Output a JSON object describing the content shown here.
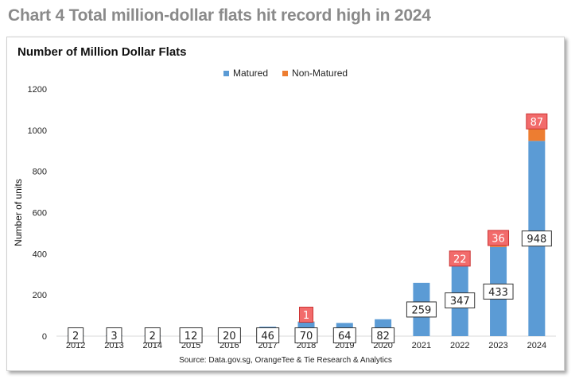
{
  "page_heading": "Chart 4 Total million-dollar flats hit record high in 2024",
  "source": "Source: Data.gov.sg, OrangeTee & Tie Research & Analytics",
  "colors": {
    "matured": "#5b9bd5",
    "non_matured": "#ed7d31",
    "non_matured_label_bg": "#f26b6b"
  },
  "chart_data": {
    "type": "bar",
    "stacked": true,
    "title": "Number of Million Dollar Flats",
    "xlabel": "",
    "ylabel": "Number of units",
    "ylim": [
      0,
      1200
    ],
    "yticks": [
      0,
      200,
      400,
      600,
      800,
      1000,
      1200
    ],
    "grid": false,
    "legend_position": "top-center",
    "categories": [
      "2012",
      "2013",
      "2014",
      "2015",
      "2016",
      "2017",
      "2018",
      "2019",
      "2020",
      "2021",
      "2022",
      "2023",
      "2024"
    ],
    "series": [
      {
        "name": "Matured",
        "values": [
          2,
          3,
          2,
          12,
          20,
          46,
          70,
          64,
          82,
          259,
          347,
          433,
          948
        ]
      },
      {
        "name": "Non-Matured",
        "values": [
          null,
          null,
          null,
          null,
          null,
          null,
          1,
          null,
          null,
          null,
          22,
          36,
          87
        ]
      }
    ]
  }
}
